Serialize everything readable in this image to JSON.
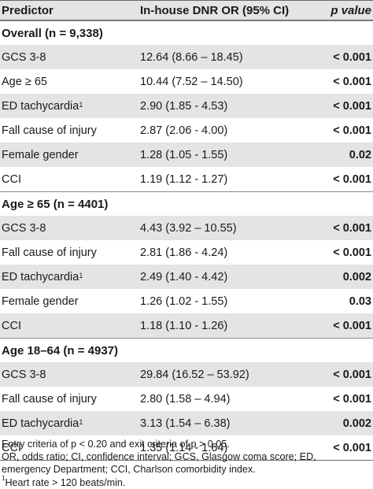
{
  "header": {
    "col1": "Predictor",
    "col2": "In-house DNR OR (95% CI)",
    "col3": "p value"
  },
  "rows": [
    {
      "type": "section",
      "label": "Overall (n = 9,338)"
    },
    {
      "type": "data",
      "predictor": "GCS 3-8",
      "or": "12.64 (8.66 – 18.45)",
      "p": "< 0.001"
    },
    {
      "type": "data",
      "predictor": "Age ≥ 65",
      "or": "10.44 (7.52 – 14.50)",
      "p": "< 0.001"
    },
    {
      "type": "data",
      "predictor": "ED tachycardia",
      "sup": "1",
      "or": "2.90 (1.85 - 4.53)",
      "p": "< 0.001"
    },
    {
      "type": "data",
      "predictor": "Fall cause of injury",
      "or": "2.87 (2.06 - 4.00)",
      "p": "< 0.001"
    },
    {
      "type": "data",
      "predictor": "Female gender",
      "or": "1.28 (1.05 - 1.55)",
      "p": "0.02"
    },
    {
      "type": "data",
      "predictor": "CCI",
      "or": "1.19 (1.12 - 1.27)",
      "p": "< 0.001"
    },
    {
      "type": "section",
      "label": "Age ≥ 65 (n = 4401)"
    },
    {
      "type": "data",
      "predictor": "GCS 3-8",
      "or": "4.43 (3.92 – 10.55)",
      "p": "< 0.001"
    },
    {
      "type": "data",
      "predictor": "Fall cause of injury",
      "or": "2.81 (1.86 - 4.24)",
      "p": "< 0.001"
    },
    {
      "type": "data",
      "predictor": "ED tachycardia",
      "sup": "1",
      "or": "2.49 (1.40 - 4.42)",
      "p": "0.002"
    },
    {
      "type": "data",
      "predictor": "Female gender",
      "or": "1.26 (1.02 - 1.55)",
      "p": "0.03"
    },
    {
      "type": "data",
      "predictor": "CCI",
      "or": "1.18 (1.10 - 1.26)",
      "p": "< 0.001"
    },
    {
      "type": "section",
      "label": "Age 18–64 (n = 4937)"
    },
    {
      "type": "data",
      "predictor": "GCS 3-8",
      "or": "29.84 (16.52 – 53.92)",
      "p": "< 0.001"
    },
    {
      "type": "data",
      "predictor": "Fall cause of injury",
      "or": "2.80 (1.58 – 4.94)",
      "p": "< 0.001"
    },
    {
      "type": "data",
      "predictor": "ED tachycardia",
      "sup": "1",
      "or": "3.13 (1.54 – 6.38)",
      "p": "0.002"
    },
    {
      "type": "data",
      "predictor": "CCI",
      "or": "1.35 (1.14 - 1.64)",
      "p": "< 0.001"
    }
  ],
  "footnotes": {
    "line1": "Entry criteria of p < 0.20 and exit criteria of p > 0.05.",
    "line2": "OR, odds ratio; CI, confidence interval; GCS, Glasgow coma score; ED,",
    "line3": "emergency Department; CCI, Charlson comorbidity index.",
    "line4_sup": "1",
    "line4": "Heart rate > 120 beats/min."
  }
}
